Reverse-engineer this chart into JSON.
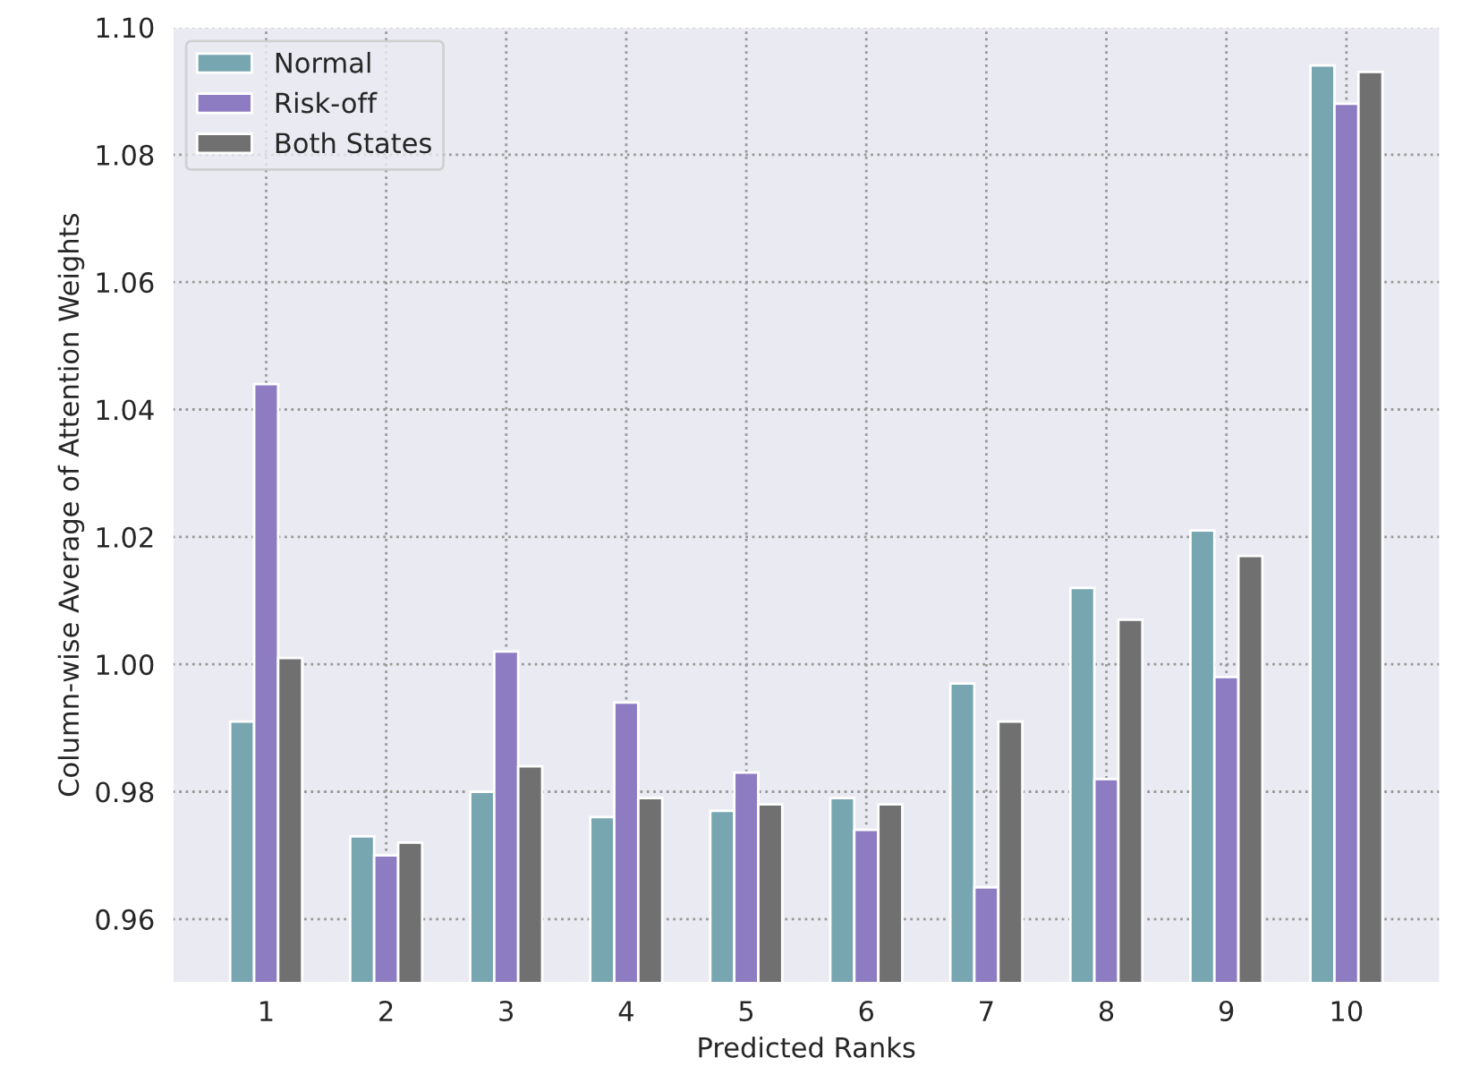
{
  "chart_data": {
    "type": "bar",
    "xlabel": "Predicted Ranks",
    "ylabel": "Column-wise Average of Attention Weights",
    "categories": [
      "1",
      "2",
      "3",
      "4",
      "5",
      "6",
      "7",
      "8",
      "9",
      "10"
    ],
    "series": [
      {
        "name": "Normal",
        "color": "#77a6b0",
        "values": [
          0.991,
          0.973,
          0.98,
          0.976,
          0.977,
          0.979,
          0.997,
          1.012,
          1.021,
          1.094
        ]
      },
      {
        "name": "Risk-off",
        "color": "#8e7cc3",
        "values": [
          1.044,
          0.97,
          1.002,
          0.994,
          0.983,
          0.974,
          0.965,
          0.982,
          0.998,
          1.088
        ]
      },
      {
        "name": "Both States",
        "color": "#707070",
        "values": [
          1.001,
          0.972,
          0.984,
          0.979,
          0.978,
          0.978,
          0.991,
          1.007,
          1.017,
          1.093
        ]
      }
    ],
    "ylim": [
      0.95,
      1.1
    ],
    "yticks": [
      {
        "value": 0.96,
        "label": "0.96"
      },
      {
        "value": 0.98,
        "label": "0.98"
      },
      {
        "value": 1.0,
        "label": "1.00"
      },
      {
        "value": 1.02,
        "label": "1.02"
      },
      {
        "value": 1.04,
        "label": "1.04"
      },
      {
        "value": 1.06,
        "label": "1.06"
      },
      {
        "value": 1.08,
        "label": "1.08"
      },
      {
        "value": 1.1,
        "label": "1.10"
      }
    ],
    "grid": true,
    "legend": "top left"
  }
}
